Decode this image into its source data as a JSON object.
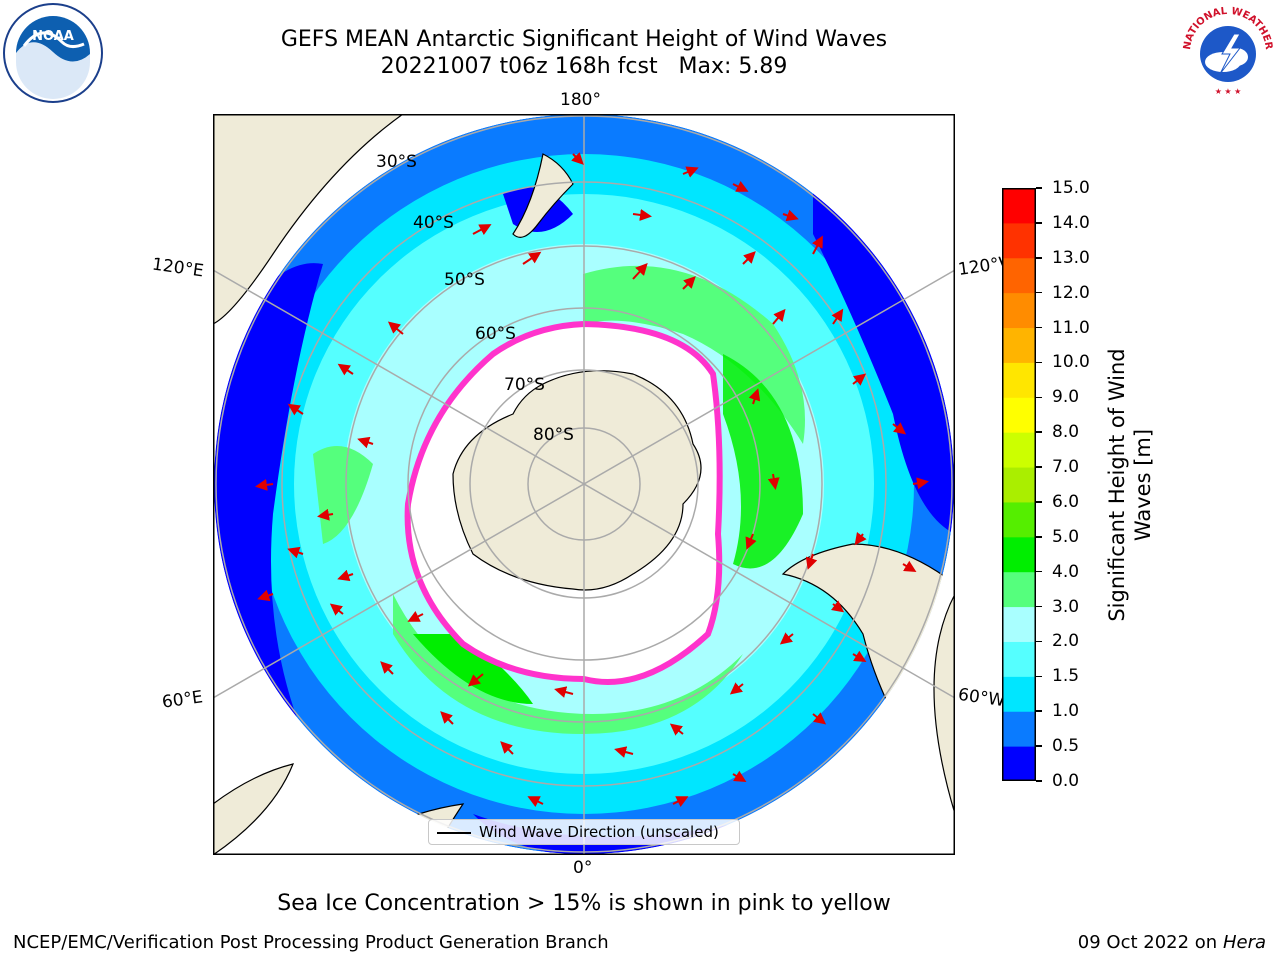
{
  "title": "GEFS MEAN Antarctic Significant Height of Wind Waves",
  "subtitle": "20221007 t06z 168h fcst   Max: 5.89",
  "map": {
    "lon_labels": {
      "top": "180°",
      "bottom": "0°",
      "left_upper": "120°E",
      "left_lower": "60°E",
      "right_upper": "120°W",
      "right_lower": "60°W"
    },
    "lat_labels": [
      "30°S",
      "40°S",
      "50°S",
      "60°S",
      "70°S",
      "80°S"
    ],
    "colors": {
      "land": "#efebd8",
      "ocean_zero": "#0000ff",
      "ice_edge": "#ff33cc",
      "ice_fill": "#ffffff",
      "arrow": "#e00000"
    }
  },
  "legend": {
    "label": "Wind Wave Direction (unscaled)"
  },
  "colorbar": {
    "title": "Significant Height of Wind Waves [m]",
    "ticks": [
      "0.0",
      "0.5",
      "1.0",
      "1.5",
      "2.0",
      "3.0",
      "4.0",
      "5.0",
      "6.0",
      "7.0",
      "8.0",
      "9.0",
      "10.0",
      "11.0",
      "12.0",
      "13.0",
      "14.0",
      "15.0"
    ],
    "colors": [
      "#0000ff",
      "#0a7bff",
      "#00e6ff",
      "#55ffff",
      "#a9ffff",
      "#55ff7d",
      "#00ee00",
      "#55ee00",
      "#aaee00",
      "#ccff00",
      "#ffff00",
      "#ffe600",
      "#ffb400",
      "#ff8c00",
      "#ff6400",
      "#ff3200",
      "#ff0000"
    ]
  },
  "note": "Sea Ice Concentration > 15% is shown in pink to yellow",
  "footer": {
    "left": "NCEP/EMC/Verification Post Processing Product Generation Branch",
    "right_prefix": "09 Oct 2022 on ",
    "right_host": "Hera"
  },
  "logos": {
    "noaa": "NOAA",
    "nws": "NATIONAL WEATHER SERVICE"
  }
}
